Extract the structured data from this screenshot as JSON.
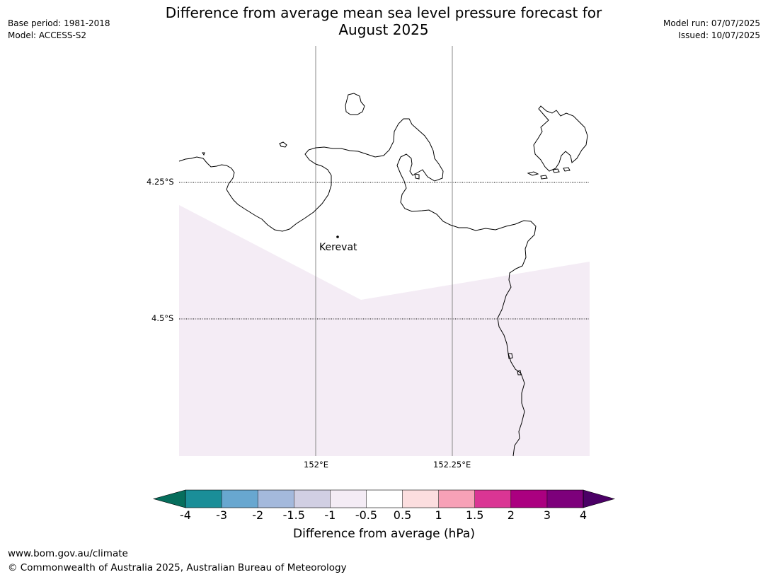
{
  "title": "Difference from average mean sea level pressure forecast for\nAugust 2025",
  "title_line1": "Difference from average mean sea level pressure forecast for",
  "title_line2": "August 2025",
  "meta_left": {
    "base_period": "Base period: 1981-2018",
    "model": "Model: ACCESS-S2"
  },
  "meta_right": {
    "model_run": "Model run: 07/07/2025",
    "issued": "Issued: 10/07/2025"
  },
  "map": {
    "lat_labels": [
      "4.25°S",
      "4.5°S"
    ],
    "lon_labels": [
      "152°E",
      "152.25°E"
    ],
    "place": "Kerevat",
    "fill_color": "#f4ecf5",
    "coast_color": "#000000"
  },
  "colorbar": {
    "ticks": [
      "-4",
      "-3",
      "-2",
      "-1.5",
      "-1",
      "-0.5",
      "0.5",
      "1",
      "1.5",
      "2",
      "3",
      "4"
    ],
    "colors": [
      "#1a8e98",
      "#68a7d0",
      "#a4b9dc",
      "#d1cfe3",
      "#f4ecf5",
      "#ffffff",
      "#fcdedf",
      "#f7a1b7",
      "#da3594",
      "#ab0080",
      "#7d007b"
    ],
    "under_color": "#066e5c",
    "over_color": "#4b0066",
    "label": "Difference from average (hPa)"
  },
  "footer": {
    "url": "www.bom.gov.au/climate",
    "copyright": "© Commonwealth of Australia 2025, Australian Bureau of Meteorology"
  }
}
